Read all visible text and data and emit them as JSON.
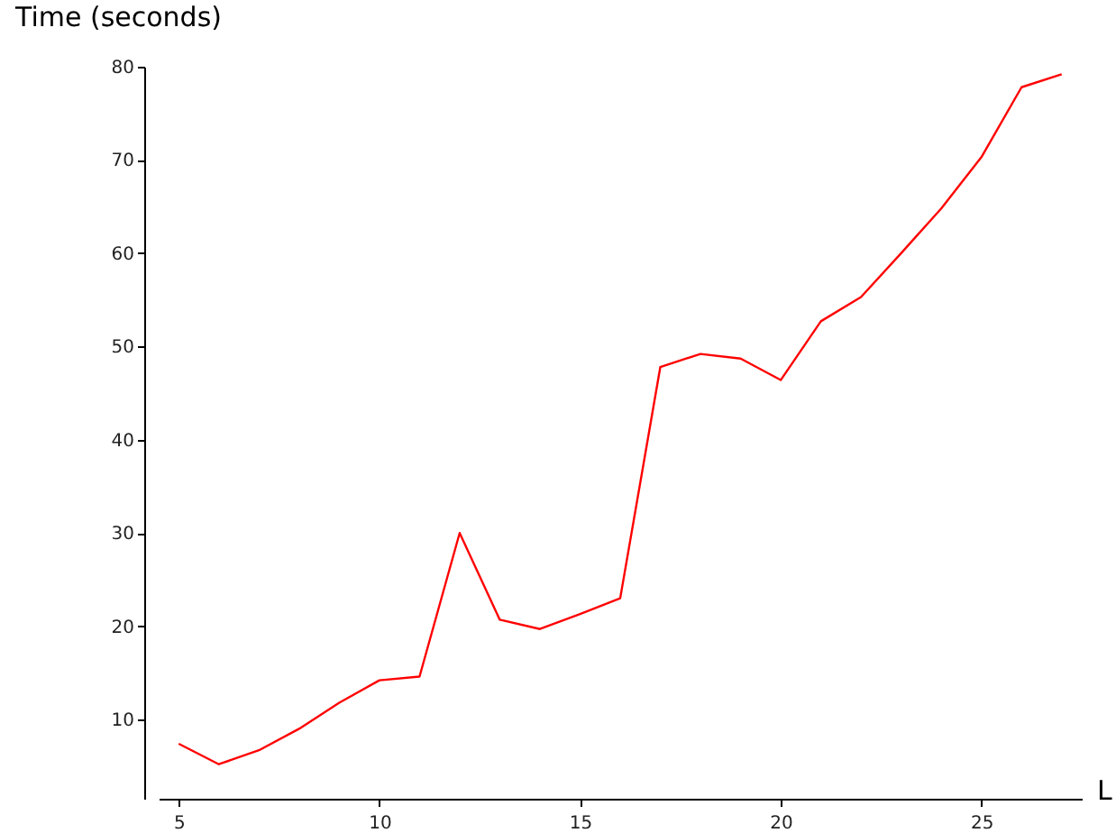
{
  "chart_data": {
    "type": "line",
    "xlabel": "L",
    "ylabel": "Time (seconds)",
    "x": [
      5,
      6,
      7,
      8,
      9,
      10,
      11,
      12,
      13,
      14,
      15,
      16,
      17,
      18,
      19,
      20,
      21,
      22,
      23,
      24,
      25,
      26,
      27
    ],
    "series": [
      {
        "color": "#ff0000",
        "values": [
          7.4,
          5.2,
          6.7,
          9.0,
          11.8,
          14.2,
          14.6,
          30,
          20.7,
          19.7,
          21.3,
          23,
          47.8,
          49.2,
          48.7,
          46.4,
          52.7,
          55.3,
          60,
          64.8,
          70.3,
          77.8,
          79.2
        ]
      }
    ],
    "xlim": [
      4.5,
      27.5
    ],
    "ylim": [
      1.5,
      80
    ],
    "xticks": [
      5,
      10,
      15,
      20,
      25
    ],
    "yticks": [
      10,
      20,
      30,
      40,
      50,
      60,
      70,
      80
    ],
    "grid": false,
    "marker": "none",
    "line_style": "solid"
  }
}
